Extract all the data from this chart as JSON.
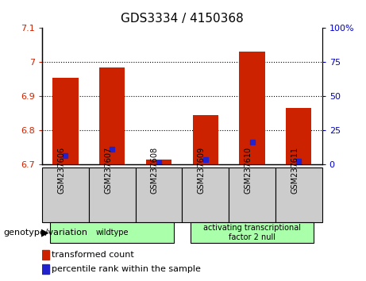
{
  "title": "GDS3334 / 4150368",
  "samples": [
    "GSM237606",
    "GSM237607",
    "GSM237608",
    "GSM237609",
    "GSM237610",
    "GSM237611"
  ],
  "red_values": [
    6.955,
    6.985,
    6.715,
    6.845,
    7.03,
    6.865
  ],
  "blue_values": [
    6.725,
    6.745,
    6.705,
    6.715,
    6.765,
    6.71
  ],
  "base_value": 6.7,
  "ylim_left": [
    6.7,
    7.1
  ],
  "ylim_right": [
    0,
    100
  ],
  "yticks_left": [
    6.7,
    6.8,
    6.9,
    7.0,
    7.1
  ],
  "ytick_labels_left": [
    "6.7",
    "6.8",
    "6.9",
    "7",
    "7.1"
  ],
  "yticks_right": [
    0,
    25,
    50,
    75,
    100
  ],
  "ytick_labels_right": [
    "0",
    "25",
    "50",
    "75",
    "100%"
  ],
  "grid_lines": [
    6.8,
    6.9,
    7.0
  ],
  "bar_width": 0.55,
  "red_color": "#cc2200",
  "blue_color": "#2222cc",
  "group_labels": [
    "wildtype",
    "activating transcriptional\nfactor 2 null"
  ],
  "group_ranges": [
    [
      0,
      2
    ],
    [
      3,
      5
    ]
  ],
  "group_color": "#aaffaa",
  "sample_box_color": "#cccccc",
  "xlabel": "genotype/variation",
  "legend_red": "transformed count",
  "legend_blue": "percentile rank within the sample",
  "left_color": "#cc2200",
  "right_color": "#0000cc",
  "title_fontsize": 11,
  "tick_fontsize": 8,
  "legend_fontsize": 8
}
